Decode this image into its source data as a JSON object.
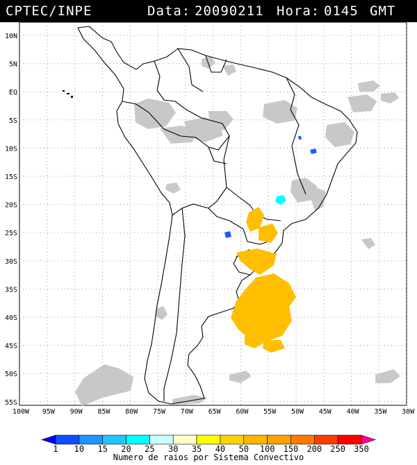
{
  "header": {
    "source": "CPTEC/INPE",
    "date_label": "Data:",
    "date": "20090211",
    "hour_label": "Hora:",
    "hour": "0145",
    "tz": "GMT"
  },
  "axes": {
    "lat_labels": [
      "10N",
      "5N",
      "EQ",
      "5S",
      "10S",
      "15S",
      "20S",
      "25S",
      "30S",
      "35S",
      "40S",
      "45S",
      "50S",
      "55S"
    ],
    "lat_values": [
      10,
      5,
      0,
      -5,
      -10,
      -15,
      -20,
      -25,
      -30,
      -35,
      -40,
      -45,
      -50,
      -55
    ],
    "lon_labels": [
      "100W",
      "95W",
      "90W",
      "85W",
      "80W",
      "75W",
      "70W",
      "65W",
      "60W",
      "55W",
      "50W",
      "45W",
      "40W",
      "35W",
      "30W"
    ],
    "lon_values": [
      -100,
      -95,
      -90,
      -85,
      -80,
      -75,
      -70,
      -65,
      -60,
      -55,
      -50,
      -45,
      -40,
      -35,
      -30
    ]
  },
  "legend": {
    "title": "Numero de raios por Sistema Convectivo",
    "tick_labels": [
      "1",
      "10",
      "15",
      "20",
      "25",
      "30",
      "35",
      "40",
      "50",
      "100",
      "150",
      "200",
      "250",
      "350"
    ],
    "colors": [
      "#0000ff",
      "#0a50ff",
      "#1e96ff",
      "#1ec8ff",
      "#00ffff",
      "#c8ffff",
      "#ffffc8",
      "#ffff00",
      "#ffd200",
      "#ffb400",
      "#ffa000",
      "#ff7800",
      "#ff3c00",
      "#ff0000",
      "#ff0096"
    ]
  },
  "colors": {
    "cloud": "#c8c8c8",
    "border": "#000000",
    "grid": "#9a9a9a",
    "lightning_high": "#ffbf00",
    "lightning_low": "#1e5aff",
    "lightning_cyan": "#00ffff"
  }
}
